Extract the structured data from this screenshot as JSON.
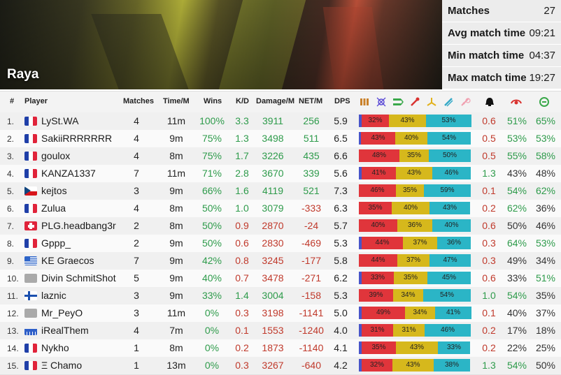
{
  "map": {
    "name": "Raya"
  },
  "summary": [
    {
      "label": "Matches",
      "value": "27"
    },
    {
      "label": "Avg match time",
      "value": "09:21"
    },
    {
      "label": "Min match time",
      "value": "04:37"
    },
    {
      "label": "Max match time",
      "value": "19:27"
    }
  ],
  "columns": {
    "rank": "#",
    "player": "Player",
    "matches": "Matches",
    "time": "Time/M",
    "wins": "Wins",
    "kd": "K/D",
    "damage": "Damage/M",
    "net": "NET/M",
    "dps": "DPS"
  },
  "class_icons": [
    "tank-icon",
    "support-icon",
    "dps-icon",
    "heal-icon",
    "build-icon",
    "sniper-icon",
    "melee-icon",
    "death-icon",
    "kill-icon",
    "objective-icon"
  ],
  "colors": {
    "good": "#2e9b4b",
    "bad": "#c0392b",
    "bar_red": "#e0353b",
    "bar_yellow": "#d6b81c",
    "bar_cyan": "#2bb5c6",
    "bar_blue": "#4855c8"
  },
  "players": [
    {
      "rank": "1.",
      "flag": "fr",
      "name": "LySt.WA",
      "matches": "4",
      "time": "11m",
      "wins": "100%",
      "kd": "3.3",
      "damage": "3911",
      "net": "256",
      "dps": "5.9",
      "bar": [
        3,
        32,
        43,
        53
      ],
      "deaths": "0.6",
      "kp": "51%",
      "obj": "65%",
      "wins_good": true,
      "kd_good": true,
      "net_good": true,
      "deaths_good": false,
      "kp_good": true,
      "obj_good": true
    },
    {
      "rank": "2.",
      "flag": "fr",
      "name": "SakiiRRRRRRR",
      "matches": "4",
      "time": "9m",
      "wins": "75%",
      "kd": "1.3",
      "damage": "3498",
      "net": "511",
      "dps": "6.5",
      "bar": [
        3,
        43,
        40,
        54
      ],
      "deaths": "0.5",
      "kp": "53%",
      "obj": "53%",
      "wins_good": true,
      "kd_good": true,
      "net_good": true,
      "deaths_good": false,
      "kp_good": true,
      "obj_good": true
    },
    {
      "rank": "3.",
      "flag": "fr",
      "name": "goulox",
      "matches": "4",
      "time": "8m",
      "wins": "75%",
      "kd": "1.7",
      "damage": "3226",
      "net": "435",
      "dps": "6.6",
      "bar": [
        0,
        48,
        35,
        50
      ],
      "deaths": "0.5",
      "kp": "55%",
      "obj": "58%",
      "wins_good": true,
      "kd_good": true,
      "net_good": true,
      "deaths_good": false,
      "kp_good": true,
      "obj_good": true
    },
    {
      "rank": "4.",
      "flag": "fr",
      "name": "KANZA1337",
      "matches": "7",
      "time": "11m",
      "wins": "71%",
      "kd": "2.8",
      "damage": "3670",
      "net": "339",
      "dps": "5.6",
      "bar": [
        3,
        41,
        43,
        46
      ],
      "deaths": "1.3",
      "kp": "43%",
      "obj": "48%",
      "wins_good": true,
      "kd_good": true,
      "net_good": true,
      "deaths_good": true,
      "kp_good": false,
      "obj_good": false
    },
    {
      "rank": "5.",
      "flag": "cz",
      "name": "kejtos",
      "matches": "3",
      "time": "9m",
      "wins": "66%",
      "kd": "1.6",
      "damage": "4119",
      "net": "521",
      "dps": "7.3",
      "bar": [
        0,
        46,
        35,
        59
      ],
      "deaths": "0.1",
      "kp": "54%",
      "obj": "62%",
      "wins_good": true,
      "kd_good": true,
      "net_good": true,
      "deaths_good": false,
      "kp_good": true,
      "obj_good": true
    },
    {
      "rank": "6.",
      "flag": "fr",
      "name": "Zulua",
      "matches": "4",
      "time": "8m",
      "wins": "50%",
      "kd": "1.0",
      "damage": "3079",
      "net": "-333",
      "dps": "6.3",
      "bar": [
        0,
        35,
        40,
        43
      ],
      "deaths": "0.2",
      "kp": "62%",
      "obj": "36%",
      "wins_good": true,
      "kd_good": true,
      "net_good": false,
      "deaths_good": false,
      "kp_good": true,
      "obj_good": false
    },
    {
      "rank": "7.",
      "flag": "ch",
      "name": "PLG.headbang3r",
      "matches": "2",
      "time": "8m",
      "wins": "50%",
      "kd": "0.9",
      "damage": "2870",
      "net": "-24",
      "dps": "5.7",
      "bar": [
        0,
        40,
        36,
        40
      ],
      "deaths": "0.6",
      "kp": "50%",
      "obj": "46%",
      "wins_good": true,
      "kd_good": false,
      "net_good": false,
      "deaths_good": false,
      "kp_good": false,
      "obj_good": false
    },
    {
      "rank": "8.",
      "flag": "fr",
      "name": "Gppp_",
      "matches": "2",
      "time": "9m",
      "wins": "50%",
      "kd": "0.6",
      "damage": "2830",
      "net": "-469",
      "dps": "5.3",
      "bar": [
        3,
        44,
        37,
        36
      ],
      "deaths": "0.3",
      "kp": "64%",
      "obj": "53%",
      "wins_good": true,
      "kd_good": false,
      "net_good": false,
      "deaths_good": false,
      "kp_good": true,
      "obj_good": true
    },
    {
      "rank": "9.",
      "flag": "gr",
      "name": "KE Graecos",
      "matches": "7",
      "time": "9m",
      "wins": "42%",
      "kd": "0.8",
      "damage": "3245",
      "net": "-177",
      "dps": "5.8",
      "bar": [
        0,
        44,
        37,
        47
      ],
      "deaths": "0.3",
      "kp": "49%",
      "obj": "34%",
      "wins_good": true,
      "kd_good": false,
      "net_good": false,
      "deaths_good": false,
      "kp_good": false,
      "obj_good": false
    },
    {
      "rank": "10.",
      "flag": "none",
      "name": "Divin SchmitShot",
      "matches": "5",
      "time": "9m",
      "wins": "40%",
      "kd": "0.7",
      "damage": "3478",
      "net": "-271",
      "dps": "6.2",
      "bar": [
        3,
        33,
        35,
        45
      ],
      "deaths": "0.6",
      "kp": "33%",
      "obj": "51%",
      "wins_good": true,
      "kd_good": false,
      "net_good": false,
      "deaths_good": false,
      "kp_good": false,
      "obj_good": true
    },
    {
      "rank": "11.",
      "flag": "fi",
      "name": "laznic",
      "matches": "3",
      "time": "9m",
      "wins": "33%",
      "kd": "1.4",
      "damage": "3004",
      "net": "-158",
      "dps": "5.3",
      "bar": [
        0,
        39,
        34,
        54
      ],
      "deaths": "1.0",
      "kp": "54%",
      "obj": "35%",
      "wins_good": true,
      "kd_good": true,
      "net_good": false,
      "deaths_good": true,
      "kp_good": true,
      "obj_good": false
    },
    {
      "rank": "12.",
      "flag": "none",
      "name": "Mr_PeyO",
      "matches": "3",
      "time": "11m",
      "wins": "0%",
      "kd": "0.3",
      "damage": "3198",
      "net": "-1141",
      "dps": "5.0",
      "bar": [
        3,
        49,
        34,
        41
      ],
      "deaths": "0.1",
      "kp": "40%",
      "obj": "37%",
      "wins_good": true,
      "kd_good": false,
      "net_good": false,
      "deaths_good": false,
      "kp_good": false,
      "obj_good": false
    },
    {
      "rank": "13.",
      "flag": "bars",
      "name": "iRealThem",
      "matches": "4",
      "time": "7m",
      "wins": "0%",
      "kd": "0.1",
      "damage": "1553",
      "net": "-1240",
      "dps": "4.0",
      "bar": [
        3,
        31,
        31,
        46
      ],
      "deaths": "0.2",
      "kp": "17%",
      "obj": "18%",
      "wins_good": true,
      "kd_good": false,
      "net_good": false,
      "deaths_good": false,
      "kp_good": false,
      "obj_good": false
    },
    {
      "rank": "14.",
      "flag": "fr",
      "name": "Nykho",
      "matches": "1",
      "time": "8m",
      "wins": "0%",
      "kd": "0.2",
      "damage": "1873",
      "net": "-1140",
      "dps": "4.1",
      "bar": [
        3,
        35,
        43,
        33
      ],
      "deaths": "0.2",
      "kp": "22%",
      "obj": "25%",
      "wins_good": true,
      "kd_good": false,
      "net_good": false,
      "deaths_good": false,
      "kp_good": false,
      "obj_good": false
    },
    {
      "rank": "15.",
      "flag": "fr",
      "name": "Ξ Chamo",
      "matches": "1",
      "time": "13m",
      "wins": "0%",
      "kd": "0.3",
      "damage": "3267",
      "net": "-640",
      "dps": "4.2",
      "bar": [
        3,
        32,
        43,
        38
      ],
      "deaths": "1.3",
      "kp": "54%",
      "obj": "50%",
      "wins_good": true,
      "kd_good": false,
      "net_good": false,
      "deaths_good": true,
      "kp_good": true,
      "obj_good": false
    }
  ]
}
